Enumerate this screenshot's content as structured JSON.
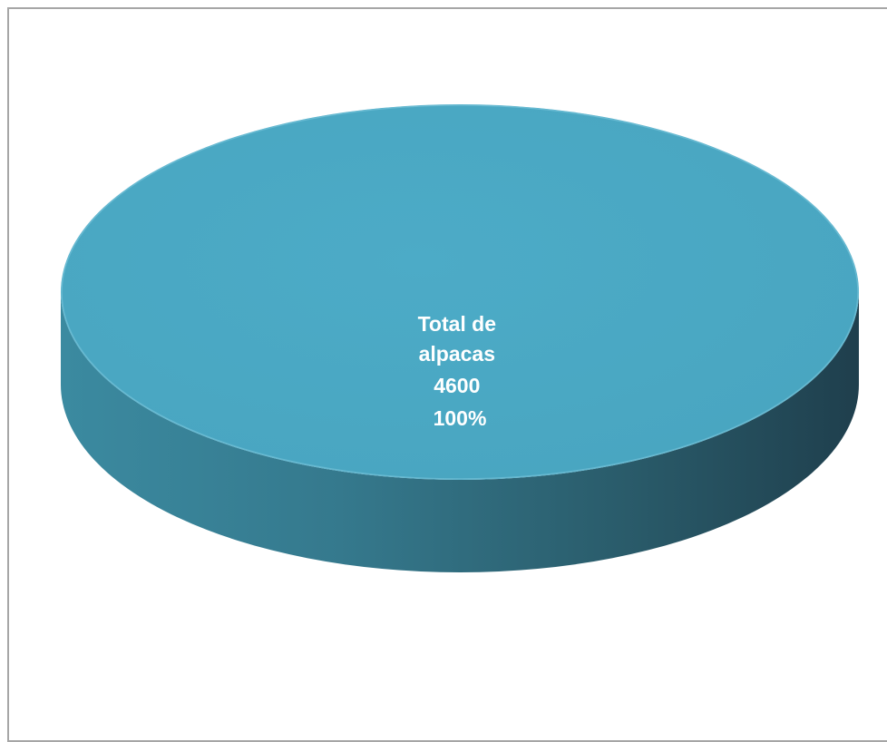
{
  "chart_data": {
    "type": "pie",
    "title": "",
    "categories": [
      "Total de alpacas"
    ],
    "values": [
      4600
    ],
    "data_labels": [
      {
        "line1": "Total de",
        "line2": "alpacas",
        "line3": "4600",
        "line4": "100%"
      }
    ],
    "style": "3d",
    "legend": "none"
  },
  "colors": {
    "top": "#4aa8c4",
    "side_light": "#3f8fa6",
    "side_dark": "#1f3f4d",
    "frame": "#a6a6a6",
    "label": "#ffffff"
  }
}
